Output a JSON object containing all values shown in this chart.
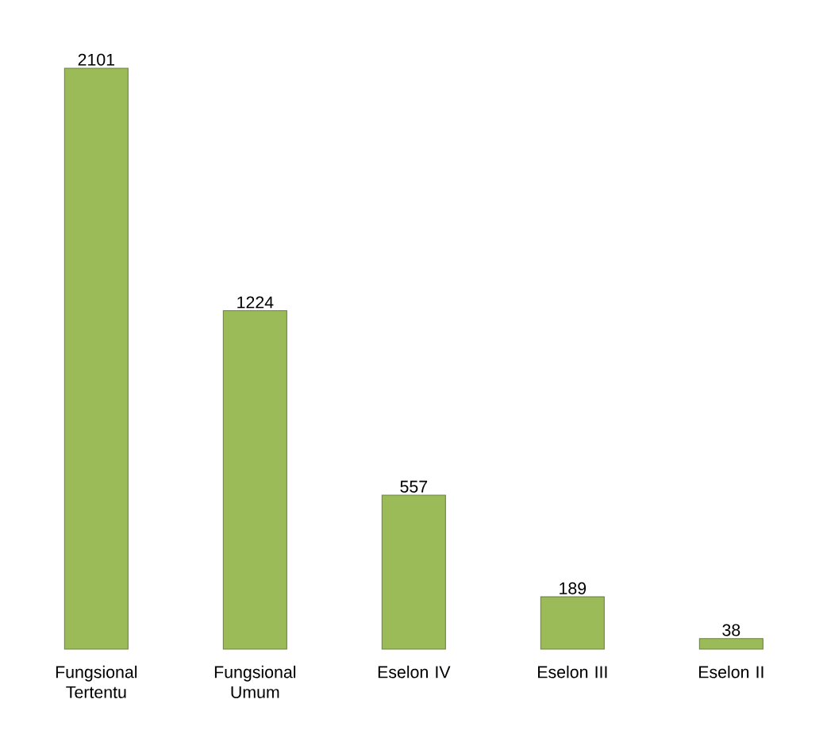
{
  "chart_data": {
    "type": "bar",
    "categories": [
      "Fungsional Tertentu",
      "Fungsional Umum",
      "Eselon IV",
      "Eselon III",
      "Eselon II"
    ],
    "values": [
      2101,
      1224,
      557,
      189,
      38
    ],
    "color": "#9bbb59",
    "data_labels": true
  }
}
